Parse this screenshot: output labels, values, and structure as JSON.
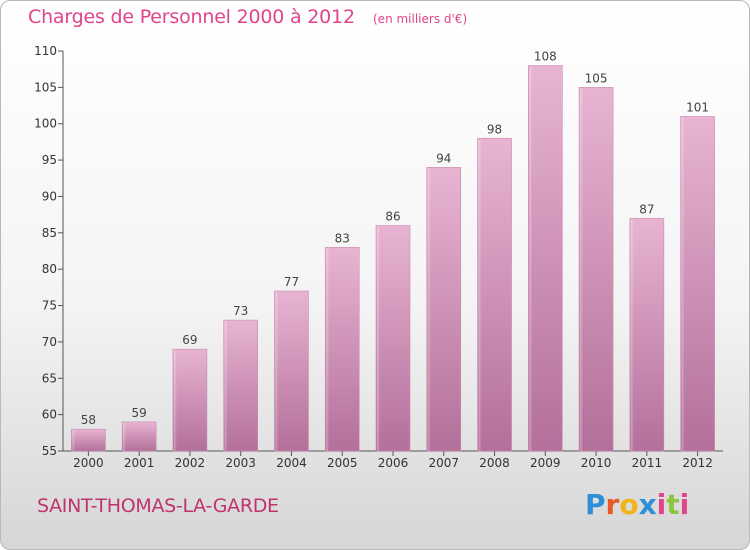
{
  "header": {
    "title": "Charges de Personnel 2000 à 2012",
    "subtitle": "(en milliers d'€)"
  },
  "footer": {
    "city": "SAINT-THOMAS-LA-GARDE",
    "logo": [
      "P",
      "r",
      "o",
      "x",
      "i",
      "t",
      "i"
    ]
  },
  "colors": {
    "title": "#e0448a",
    "bar": "#d58fb5",
    "bar_light": "#e6b0cf",
    "bar_dark": "#b0628f"
  },
  "chart_data": {
    "type": "bar",
    "title": "Charges de Personnel 2000 à 2012",
    "subtitle": "(en milliers d'€)",
    "categories": [
      "2000",
      "2001",
      "2002",
      "2003",
      "2004",
      "2005",
      "2006",
      "2007",
      "2008",
      "2009",
      "2010",
      "2011",
      "2012"
    ],
    "values": [
      58,
      59,
      69,
      73,
      77,
      83,
      86,
      94,
      98,
      108,
      105,
      87,
      101
    ],
    "ylim": [
      55,
      110
    ],
    "yticks": [
      55,
      60,
      65,
      70,
      75,
      80,
      85,
      90,
      95,
      100,
      105,
      110
    ],
    "grid": false,
    "legend": "none"
  }
}
